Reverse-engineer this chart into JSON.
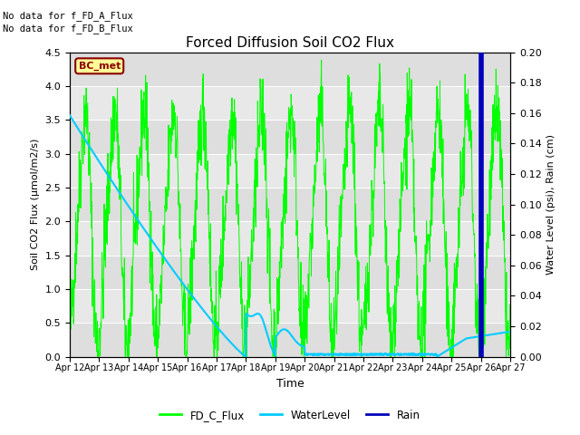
{
  "title": "Forced Diffusion Soil CO2 Flux",
  "xlabel": "Time",
  "ylabel_left": "Soil CO2 Flux (μmol/m2/s)",
  "ylabel_right": "Water Level (psi), Rain (cm)",
  "text_no_data_1": "No data for f_FD_A_Flux",
  "text_no_data_2": "No data for f_FD_B_Flux",
  "bc_met_label": "BC_met",
  "ylim_left": [
    0,
    4.5
  ],
  "ylim_right": [
    0,
    0.2
  ],
  "yticks_left": [
    0.0,
    0.5,
    1.0,
    1.5,
    2.0,
    2.5,
    3.0,
    3.5,
    4.0,
    4.5
  ],
  "yticks_right": [
    0.0,
    0.02,
    0.04,
    0.06,
    0.08,
    0.1,
    0.12,
    0.14,
    0.16,
    0.18,
    0.2
  ],
  "xtick_labels": [
    "Apr 12",
    "Apr 13",
    "Apr 14",
    "Apr 15",
    "Apr 16",
    "Apr 17",
    "Apr 18",
    "Apr 19",
    "Apr 20",
    "Apr 21",
    "Apr 22",
    "Apr 23",
    "Apr 24",
    "Apr 25",
    "Apr 26",
    "Apr 27"
  ],
  "fd_c_color": "#00ff00",
  "water_color": "#00ccff",
  "rain_color": "#0000bb",
  "background_plot": "#e8e8e8",
  "background_band1": "#dcdcdc",
  "background_band2": "#ebebeb",
  "legend_entries": [
    "FD_C_Flux",
    "WaterLevel",
    "Rain"
  ]
}
